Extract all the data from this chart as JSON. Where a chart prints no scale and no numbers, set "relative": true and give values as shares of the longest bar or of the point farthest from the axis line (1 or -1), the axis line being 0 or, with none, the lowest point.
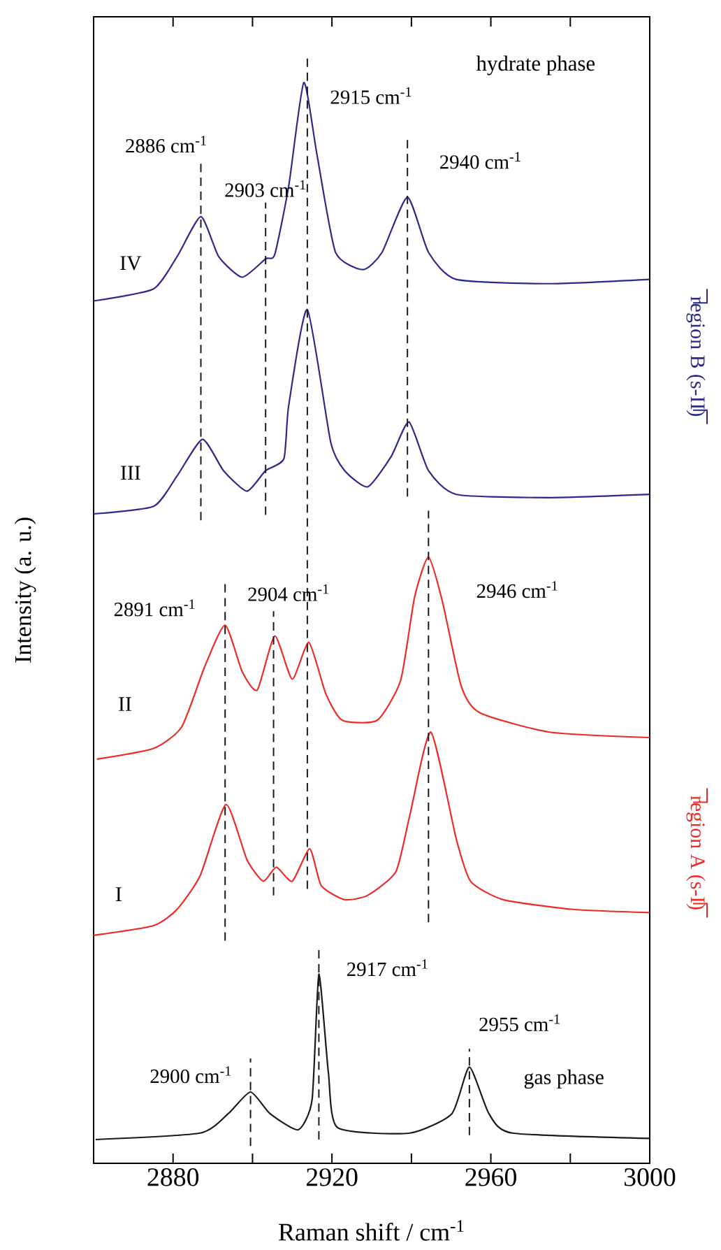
{
  "chart_data": {
    "type": "line",
    "relative": true,
    "xlabel": "Raman shift / cm$^{-1}$",
    "ylabel": "Intensity (a. u.)",
    "xlim": [
      2860,
      3000
    ],
    "xticks": [
      2880,
      {
        "value": 2900,
        "label": null
      },
      2920,
      {
        "value": 2940,
        "label": null
      },
      2960,
      {
        "value": 2980,
        "label": null
      },
      3000
    ],
    "legend": false,
    "marker": "none",
    "line_style": "solid",
    "series": [
      {
        "name": "IV",
        "color": "#2a2a8c",
        "x": [
          2860,
          2875,
          2881,
          2887,
          2891.5,
          2897.4,
          2903.3,
          2905.6,
          2909.1,
          2912.9,
          2916.2,
          2920.9,
          2927.9,
          2932.6,
          2939.0,
          2944.3,
          2951.3,
          2974.8,
          3000
        ],
        "values": [
          0.798,
          0.809,
          0.839,
          0.876,
          0.839,
          0.82,
          0.837,
          0.841,
          0.904,
          1.0,
          0.934,
          0.843,
          0.827,
          0.843,
          0.894,
          0.843,
          0.818,
          0.814,
          0.818
        ]
      },
      {
        "name": "III",
        "color": "#2a2a8c",
        "x": [
          2860,
          2875.1,
          2881,
          2887.4,
          2892.7,
          2898.6,
          2903.3,
          2907.9,
          2909.1,
          2913.8,
          2919.7,
          2923.2,
          2929.0,
          2934.9,
          2939.4,
          2944.3,
          2951.3,
          2974.8,
          3000
        ],
        "values": [
          0.601,
          0.608,
          0.636,
          0.67,
          0.641,
          0.622,
          0.641,
          0.652,
          0.701,
          0.79,
          0.667,
          0.641,
          0.626,
          0.654,
          0.686,
          0.641,
          0.619,
          0.616,
          0.619
        ]
      },
      {
        "name": "II",
        "color": "#ee2a24",
        "x": [
          2860.8,
          2875.1,
          2882.2,
          2888.0,
          2893.1,
          2897.4,
          2901.2,
          2905.6,
          2910.0,
          2914.2,
          2918.5,
          2922.6,
          2931.4,
          2937.3,
          2940.8,
          2944.3,
          2947.8,
          2952.5,
          2957.2,
          2974.8,
          3000
        ],
        "values": [
          0.374,
          0.384,
          0.404,
          0.46,
          0.498,
          0.455,
          0.438,
          0.488,
          0.448,
          0.482,
          0.434,
          0.41,
          0.41,
          0.447,
          0.524,
          0.561,
          0.52,
          0.442,
          0.417,
          0.399,
          0.394
        ]
      },
      {
        "name": "I",
        "color": "#ee2a24",
        "x": [
          2860,
          2875.1,
          2881,
          2886.8,
          2893.3,
          2898.6,
          2902.7,
          2906.0,
          2910.0,
          2914.4,
          2917.3,
          2923.2,
          2929.0,
          2936.1,
          2939.6,
          2944.9,
          2951.3,
          2954.9,
          2963.1,
          2980.6,
          3000
        ],
        "values": [
          0.211,
          0.22,
          0.235,
          0.266,
          0.332,
          0.281,
          0.261,
          0.274,
          0.261,
          0.291,
          0.257,
          0.244,
          0.248,
          0.27,
          0.322,
          0.399,
          0.3,
          0.261,
          0.244,
          0.235,
          0.232
        ]
      },
      {
        "name": "gas phase",
        "color": "#1a1a1a",
        "x": [
          2860.5,
          2886.8,
          2893.9,
          2899.5,
          2904.4,
          2911.5,
          2915.0,
          2916.7,
          2919.1,
          2921.4,
          2939.6,
          2950.2,
          2954.6,
          2959.5,
          2965.4,
          3000
        ],
        "values": [
          0.022,
          0.028,
          0.046,
          0.066,
          0.046,
          0.031,
          0.059,
          0.175,
          0.084,
          0.033,
          0.028,
          0.046,
          0.089,
          0.046,
          0.028,
          0.023
        ]
      }
    ],
    "ref_lines": [
      {
        "axis": "x",
        "value": 2887,
        "color": "#1a1a1a",
        "line_style": "dashed"
      },
      {
        "axis": "x",
        "value": 2903.3,
        "color": "#1a1a1a",
        "line_style": "dashed"
      },
      {
        "axis": "x",
        "value": 2913.8,
        "color": "#1a1a1a",
        "line_style": "dashed"
      },
      {
        "axis": "x",
        "value": 2939,
        "color": "#1a1a1a",
        "line_style": "dashed"
      },
      {
        "axis": "x",
        "value": 2893.1,
        "color": "#1a1a1a",
        "line_style": "dashed"
      },
      {
        "axis": "x",
        "value": 2905.3,
        "color": "#1a1a1a",
        "line_style": "dashed"
      },
      {
        "axis": "x",
        "value": 2944.3,
        "color": "#1a1a1a",
        "line_style": "dashed"
      },
      {
        "axis": "x",
        "value": 2916.7,
        "color": "#1a1a1a",
        "line_style": "dashed"
      },
      {
        "axis": "x",
        "value": 2954.6,
        "color": "#1a1a1a",
        "line_style": "dashed"
      },
      {
        "axis": "x",
        "value": 2899.5,
        "color": "#1a1a1a",
        "line_style": "dashed"
      }
    ],
    "annotations": [
      "hydrate phase",
      "2886 cm$^{-1}$",
      "2903 cm$^{-1}$",
      "2915 cm$^{-1}$",
      "2940 cm$^{-1}$",
      "2891 cm$^{-1}$",
      "2904 cm$^{-1}$",
      "2946 cm$^{-1}$",
      "2917 cm$^{-1}$",
      "2955 cm$^{-1}$",
      "2900 cm$^{-1}$",
      "region B (s-II)",
      "region A (s-I)"
    ]
  }
}
